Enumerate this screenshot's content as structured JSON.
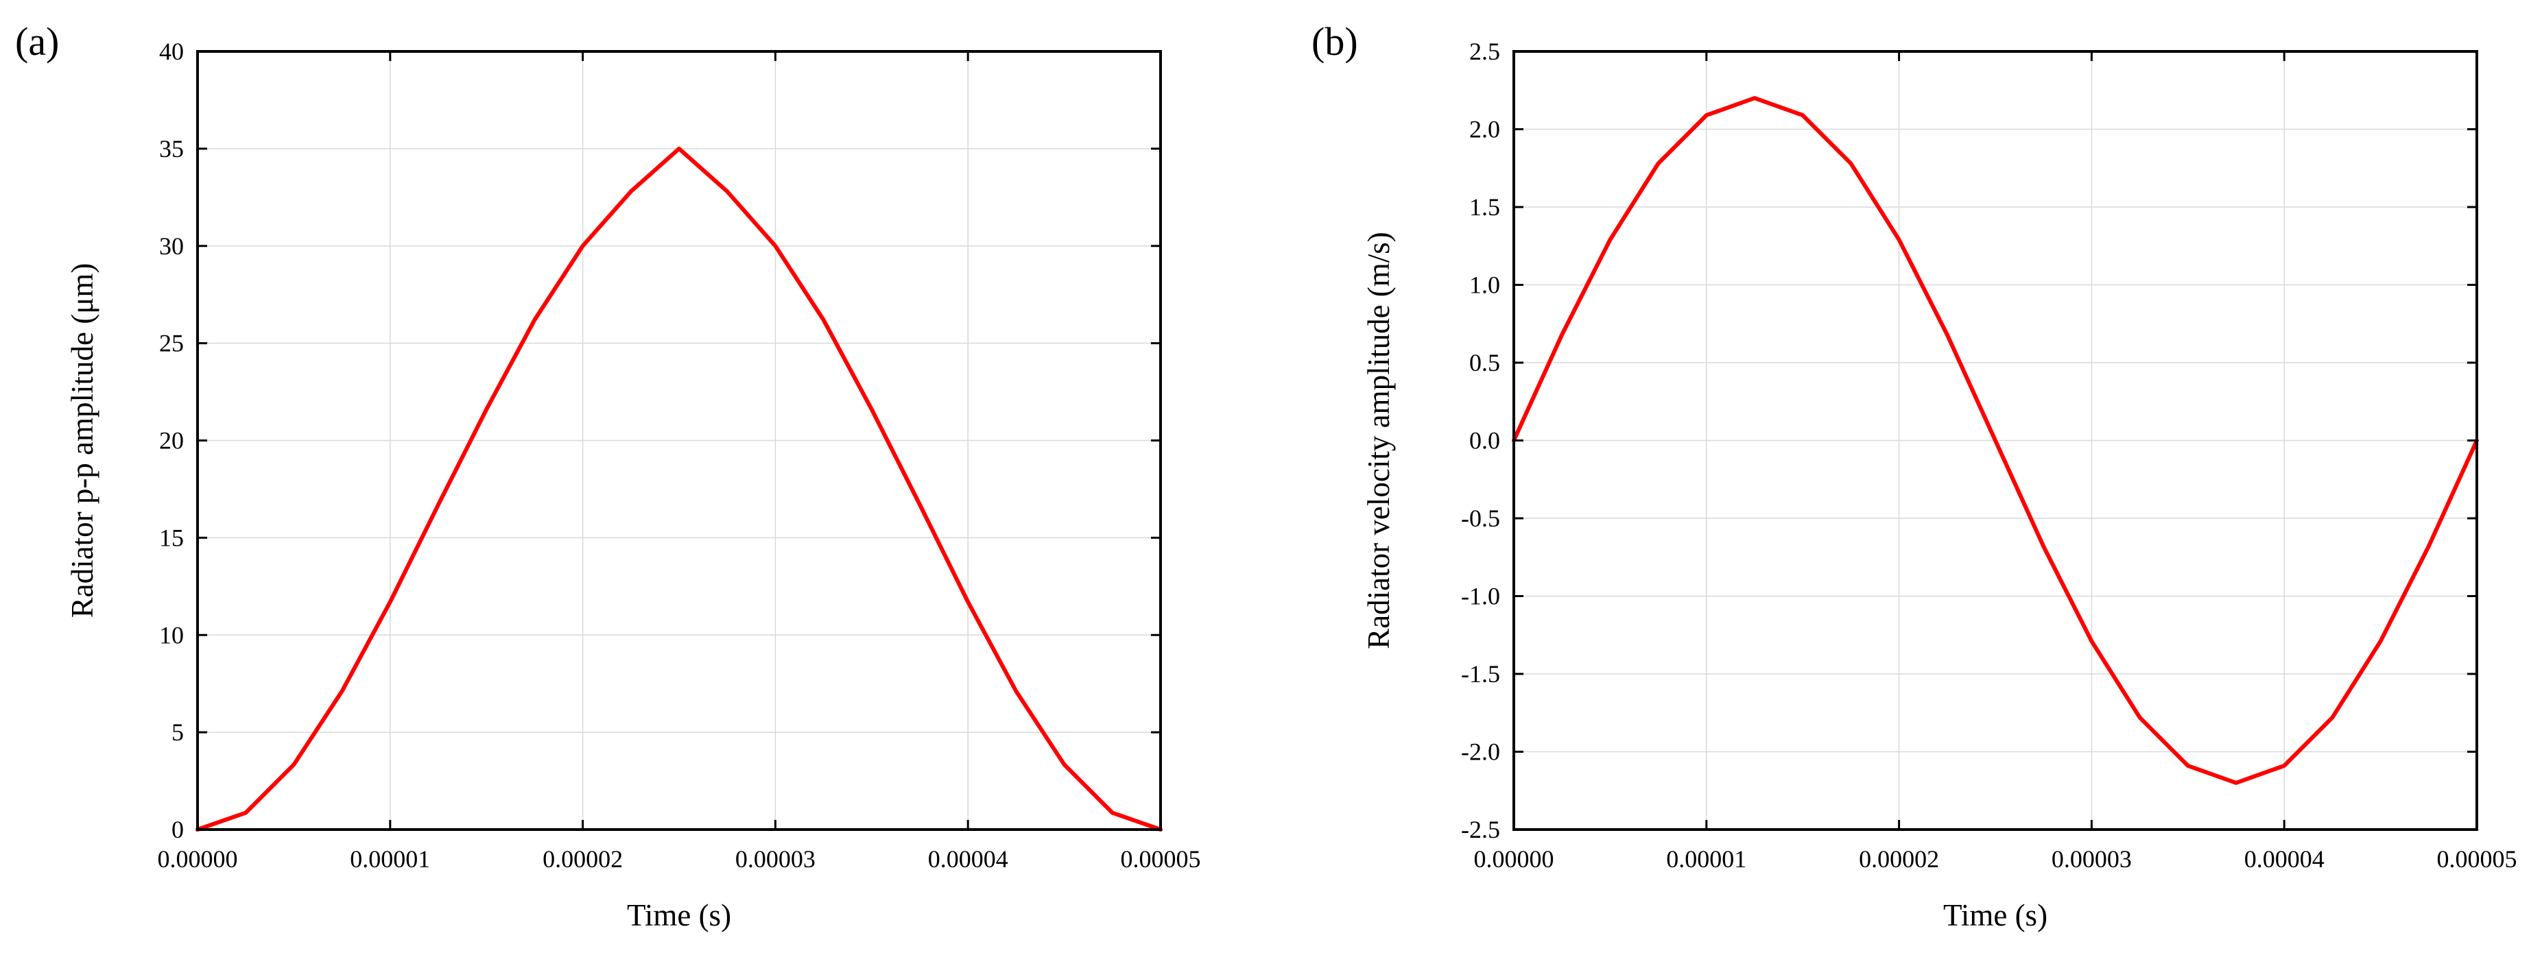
{
  "chart_data": [
    {
      "panel_label": "(a)",
      "type": "line",
      "title": "",
      "xlabel": "Time (s)",
      "ylabel": "Radiator p-p amplitude (μm)",
      "xlim": [
        0,
        5e-05
      ],
      "ylim": [
        0,
        40
      ],
      "xticks": [
        0,
        1e-05,
        2e-05,
        3e-05,
        4e-05,
        5e-05
      ],
      "xtick_labels": [
        "0.00000",
        "0.00001",
        "0.00002",
        "0.00003",
        "0.00004",
        "0.00005"
      ],
      "yticks": [
        0,
        5,
        10,
        15,
        20,
        25,
        30,
        35,
        40
      ],
      "ytick_labels": [
        "0",
        "5",
        "10",
        "15",
        "20",
        "25",
        "30",
        "35",
        "40"
      ],
      "grid": true,
      "series_color": "#ff0000",
      "series": [
        {
          "name": "p-p amplitude",
          "x": [
            0,
            2.5e-06,
            5e-06,
            7.5e-06,
            1e-05,
            1.25e-05,
            1.5e-05,
            1.75e-05,
            2e-05,
            2.25e-05,
            2.5e-05,
            2.75e-05,
            3e-05,
            3.25e-05,
            3.5e-05,
            3.75e-05,
            4e-05,
            4.25e-05,
            4.5e-05,
            4.75e-05,
            5e-05
          ],
          "values": [
            0,
            0.86,
            3.34,
            7.11,
            11.7,
            16.7,
            21.6,
            26.2,
            30.0,
            32.8,
            35.0,
            32.8,
            30.0,
            26.2,
            21.6,
            16.7,
            11.7,
            7.11,
            3.34,
            0.86,
            0
          ]
        }
      ]
    },
    {
      "panel_label": "(b)",
      "type": "line",
      "title": "",
      "xlabel": "Time (s)",
      "ylabel": "Radiator velocity amplitude (m/s)",
      "xlim": [
        0,
        5e-05
      ],
      "ylim": [
        -2.5,
        2.5
      ],
      "xticks": [
        0,
        1e-05,
        2e-05,
        3e-05,
        4e-05,
        5e-05
      ],
      "xtick_labels": [
        "0.00000",
        "0.00001",
        "0.00002",
        "0.00003",
        "0.00004",
        "0.00005"
      ],
      "yticks": [
        -2.5,
        -2.0,
        -1.5,
        -1.0,
        -0.5,
        0.0,
        0.5,
        1.0,
        1.5,
        2.0,
        2.5
      ],
      "ytick_labels": [
        "-2.5",
        "-2.0",
        "-1.5",
        "-1.0",
        "-0.5",
        "0.0",
        "0.5",
        "1.0",
        "1.5",
        "2.0",
        "2.5"
      ],
      "grid": true,
      "series_color": "#ff0000",
      "series": [
        {
          "name": "velocity amplitude",
          "x": [
            0,
            2.5e-06,
            5e-06,
            7.5e-06,
            1e-05,
            1.25e-05,
            1.5e-05,
            1.75e-05,
            2e-05,
            2.25e-05,
            2.5e-05,
            2.75e-05,
            3e-05,
            3.25e-05,
            3.5e-05,
            3.75e-05,
            4e-05,
            4.25e-05,
            4.5e-05,
            4.75e-05,
            5e-05
          ],
          "values": [
            0,
            0.68,
            1.29,
            1.78,
            2.09,
            2.2,
            2.09,
            1.78,
            1.29,
            0.68,
            0,
            -0.68,
            -1.29,
            -1.78,
            -2.09,
            -2.2,
            -2.09,
            -1.78,
            -1.29,
            -0.68,
            0
          ]
        }
      ]
    }
  ]
}
